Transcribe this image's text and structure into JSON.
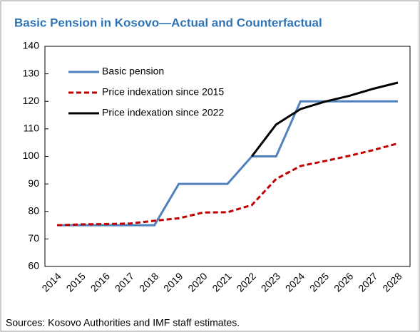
{
  "chart_data": {
    "type": "line",
    "title": "Basic Pension in Kosovo—Actual and Counterfactual",
    "source": "Sources: Kosovo Authorities and IMF staff estimates.",
    "categories": [
      "2014",
      "2015",
      "2016",
      "2017",
      "2018",
      "2019",
      "2020",
      "2021",
      "2022",
      "2023",
      "2024",
      "2025",
      "2026",
      "2027",
      "2028"
    ],
    "series": [
      {
        "name": "Basic pension",
        "color": "#4f81bd",
        "dash": "solid",
        "values": [
          75,
          75,
          75,
          75,
          75,
          90,
          90,
          90,
          100,
          100,
          120,
          120,
          120,
          120,
          120
        ]
      },
      {
        "name": "Price indexation since 2015",
        "color": "#c00000",
        "dash": "dashed",
        "values": [
          75,
          75.3,
          75.4,
          75.6,
          76.6,
          77.5,
          79.6,
          79.7,
          82.3,
          91.8,
          96.5,
          98.3,
          100.2,
          102.3,
          104.7
        ]
      },
      {
        "name": "Price indexation since 2022",
        "color": "#000000",
        "dash": "solid",
        "values": [
          null,
          null,
          null,
          null,
          null,
          null,
          null,
          null,
          100,
          111.6,
          117.2,
          119.9,
          122.0,
          124.6,
          126.8
        ]
      }
    ],
    "ylim": [
      60,
      140
    ],
    "yticks": [
      60,
      70,
      80,
      90,
      100,
      110,
      120,
      130,
      140
    ],
    "grid": false,
    "legend": "top-left"
  }
}
